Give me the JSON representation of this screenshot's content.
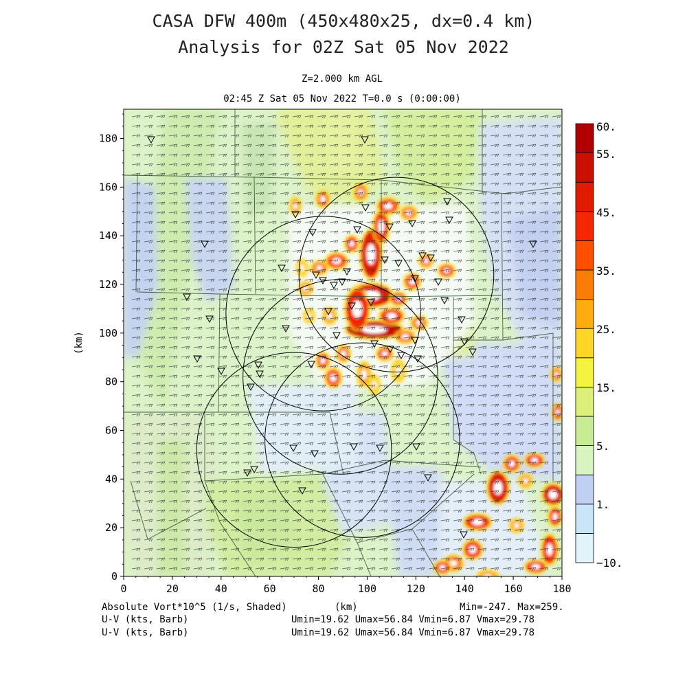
{
  "title": {
    "line1": "CASA DFW 400m (450x480x25, dx=0.4 km)",
    "line2": "Analysis for 02Z Sat 05 Nov 2022"
  },
  "subtitle": {
    "level": "Z=2.000 km AGL",
    "time": "02:45 Z Sat 05 Nov 2022    T=0.0 s (0:00:00)"
  },
  "axes": {
    "x_ticks": [
      "0",
      "20",
      "40",
      "60",
      "80",
      "100",
      "120",
      "140",
      "160",
      "180"
    ],
    "y_ticks": [
      "0",
      "20",
      "40",
      "60",
      "80",
      "100",
      "120",
      "140",
      "160",
      "180"
    ],
    "x_label": "(km)",
    "y_label": "(km)",
    "x_range": [
      0,
      180
    ],
    "y_range": [
      0,
      192
    ]
  },
  "colorbar": {
    "labels": [
      "60.",
      "55.",
      "45.",
      "35.",
      "25.",
      "15.",
      "5.",
      "1.",
      "−10."
    ],
    "colors": [
      "#e0f4fa",
      "#c8e4f6",
      "#c0d0f2",
      "#d8f4c0",
      "#c8ec94",
      "#dcf078",
      "#f4f440",
      "#fcd428",
      "#fcac10",
      "#fc7c08",
      "#fc5000",
      "#f42800",
      "#e01c00",
      "#c81000",
      "#b00000"
    ]
  },
  "footer": {
    "var1": "Absolute Vort*10^5 (1/s, Shaded)",
    "var2": "U-V (kts, Barb)",
    "var3": "U-V (kts, Barb)",
    "units": "(km)",
    "minmax": "Min=-247. Max=259.",
    "stats2": "Umin=19.62 Umax=56.84 Vmin=6.87 Vmax=29.78",
    "stats3": "Umin=19.62 Umax=56.84 Vmin=6.87 Vmax=29.78"
  },
  "map_data": {
    "radars_km": [
      [
        82,
        108
      ],
      [
        112,
        124
      ],
      [
        89,
        82
      ],
      [
        70,
        52
      ],
      [
        98,
        56
      ]
    ],
    "radar_range_km": 40
  }
}
